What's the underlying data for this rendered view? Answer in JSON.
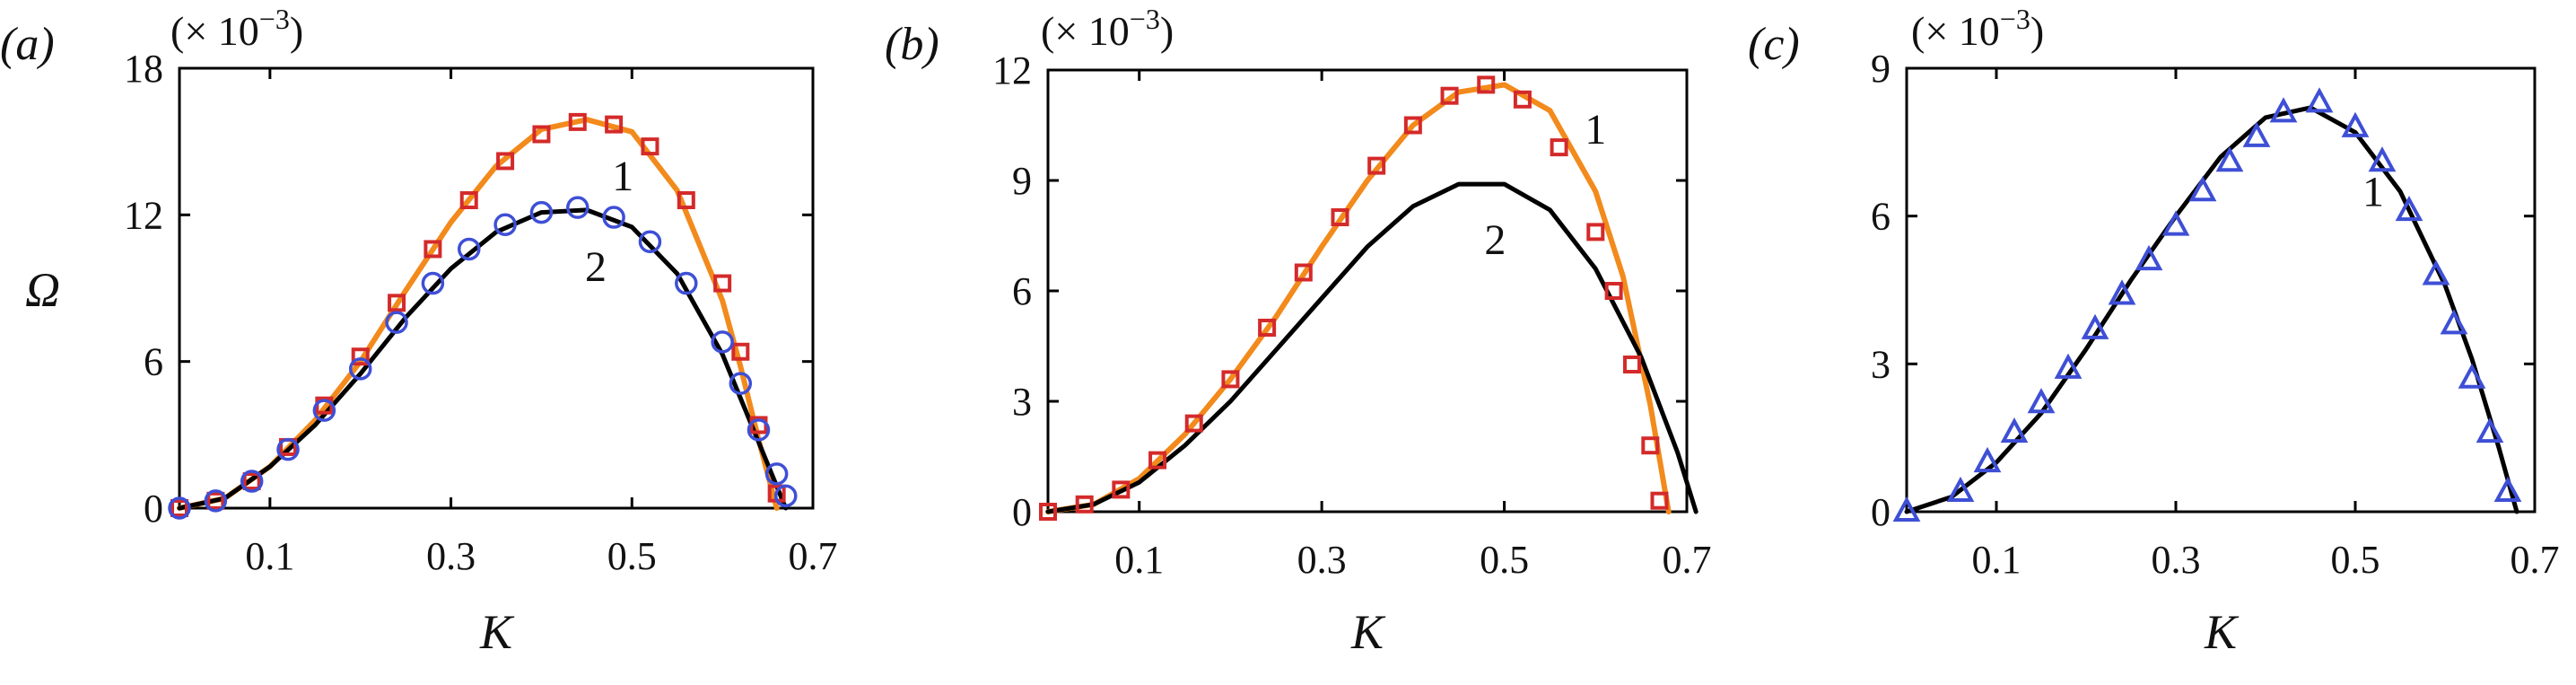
{
  "chart_data": [
    {
      "type": "line",
      "panel_label": "(a)",
      "exponent_label": "(× 10",
      "exponent_sup": "−3",
      "exponent_close": ")",
      "xlabel": "K",
      "ylabel": "Ω",
      "xlim": [
        0,
        0.7
      ],
      "ylim": [
        0,
        18
      ],
      "x_ticks": [
        "0.1",
        "0.3",
        "0.5",
        "0.7"
      ],
      "x_tick_values": [
        0.1,
        0.3,
        0.5,
        0.7
      ],
      "y_ticks": [
        "0",
        "6",
        "12",
        "18"
      ],
      "y_tick_values": [
        0,
        6,
        12,
        18
      ],
      "series": [
        {
          "name": "1",
          "style": "line",
          "color": "#f28a1c",
          "x": [
            0,
            0.05,
            0.1,
            0.15,
            0.2,
            0.25,
            0.3,
            0.35,
            0.4,
            0.45,
            0.5,
            0.55,
            0.6,
            0.62,
            0.64,
            0.66
          ],
          "values": [
            0,
            0.4,
            1.7,
            3.6,
            6.0,
            8.9,
            11.7,
            14.0,
            15.5,
            15.9,
            15.4,
            13.0,
            8.5,
            5.8,
            2.8,
            0
          ]
        },
        {
          "name": "",
          "style": "line",
          "color": "#000000",
          "x": [
            0,
            0.05,
            0.1,
            0.15,
            0.2,
            0.25,
            0.3,
            0.35,
            0.4,
            0.45,
            0.5,
            0.55,
            0.6,
            0.62,
            0.65,
            0.67
          ],
          "values": [
            0,
            0.4,
            1.7,
            3.4,
            5.5,
            7.8,
            9.8,
            11.3,
            12.1,
            12.2,
            11.5,
            9.6,
            6.3,
            4.5,
            1.8,
            0
          ]
        },
        {
          "name": "",
          "style": "marker",
          "marker": "square",
          "color": "#d42a2a",
          "x": [
            0.0,
            0.04,
            0.08,
            0.12,
            0.16,
            0.2,
            0.24,
            0.28,
            0.32,
            0.36,
            0.4,
            0.44,
            0.48,
            0.52,
            0.56,
            0.6,
            0.62,
            0.64,
            0.66
          ],
          "values": [
            0,
            0.3,
            1.1,
            2.5,
            4.2,
            6.2,
            8.4,
            10.6,
            12.6,
            14.2,
            15.3,
            15.8,
            15.7,
            14.8,
            12.6,
            9.2,
            6.4,
            3.4,
            0.6
          ]
        },
        {
          "name": "",
          "style": "marker",
          "marker": "circle",
          "color": "#3e4fd6",
          "x": [
            0.0,
            0.04,
            0.08,
            0.12,
            0.16,
            0.2,
            0.24,
            0.28,
            0.32,
            0.36,
            0.4,
            0.44,
            0.48,
            0.52,
            0.56,
            0.6,
            0.62,
            0.64,
            0.66,
            0.67
          ],
          "values": [
            0,
            0.3,
            1.1,
            2.4,
            4.0,
            5.7,
            7.6,
            9.2,
            10.6,
            11.6,
            12.1,
            12.3,
            11.9,
            10.9,
            9.2,
            6.8,
            5.1,
            3.2,
            1.4,
            0.5
          ]
        }
      ],
      "annotations": [
        {
          "text": "1",
          "x": 0.49,
          "y": 13.0
        },
        {
          "text": "2",
          "x": 0.46,
          "y": 9.3
        }
      ]
    },
    {
      "type": "line",
      "panel_label": "(b)",
      "exponent_label": "(× 10",
      "exponent_sup": "−3",
      "exponent_close": ")",
      "xlabel": "K",
      "ylabel": "",
      "xlim": [
        0,
        0.7
      ],
      "ylim": [
        0,
        12
      ],
      "x_ticks": [
        "0.1",
        "0.3",
        "0.5",
        "0.7"
      ],
      "x_tick_values": [
        0.1,
        0.3,
        0.5,
        0.7
      ],
      "y_ticks": [
        "0",
        "3",
        "6",
        "9",
        "12"
      ],
      "y_tick_values": [
        0,
        3,
        6,
        9,
        12
      ],
      "series": [
        {
          "name": "1",
          "style": "line",
          "color": "#f28a1c",
          "x": [
            0,
            0.05,
            0.1,
            0.15,
            0.2,
            0.25,
            0.3,
            0.35,
            0.4,
            0.45,
            0.5,
            0.55,
            0.6,
            0.63,
            0.66,
            0.68
          ],
          "values": [
            0,
            0.2,
            0.9,
            2.1,
            3.6,
            5.3,
            7.2,
            9.0,
            10.5,
            11.4,
            11.6,
            10.9,
            8.7,
            6.4,
            2.9,
            0
          ]
        },
        {
          "name": "2",
          "style": "line",
          "color": "#000000",
          "x": [
            0,
            0.05,
            0.1,
            0.15,
            0.2,
            0.25,
            0.3,
            0.35,
            0.4,
            0.45,
            0.5,
            0.55,
            0.6,
            0.65,
            0.69,
            0.71
          ],
          "values": [
            0,
            0.2,
            0.8,
            1.8,
            3.0,
            4.4,
            5.8,
            7.2,
            8.3,
            8.9,
            8.9,
            8.2,
            6.6,
            4.2,
            1.6,
            0
          ]
        },
        {
          "name": "",
          "style": "marker",
          "marker": "square",
          "color": "#d42a2a",
          "x": [
            0.0,
            0.04,
            0.08,
            0.12,
            0.16,
            0.2,
            0.24,
            0.28,
            0.32,
            0.36,
            0.4,
            0.44,
            0.48,
            0.52,
            0.56,
            0.6,
            0.62,
            0.64,
            0.66,
            0.67
          ],
          "values": [
            0,
            0.2,
            0.6,
            1.4,
            2.4,
            3.6,
            5.0,
            6.5,
            8.0,
            9.4,
            10.5,
            11.3,
            11.6,
            11.2,
            9.9,
            7.6,
            6.0,
            4.0,
            1.8,
            0.3
          ]
        }
      ],
      "annotations": [
        {
          "text": "1",
          "x": 0.6,
          "y": 10.0
        },
        {
          "text": "2",
          "x": 0.49,
          "y": 7.0
        }
      ]
    },
    {
      "type": "line",
      "panel_label": "(c)",
      "exponent_label": "(× 10",
      "exponent_sup": "−3",
      "exponent_close": ")",
      "xlabel": "K",
      "ylabel": "",
      "xlim": [
        0,
        0.7
      ],
      "ylim": [
        0,
        9
      ],
      "x_ticks": [
        "0.1",
        "0.3",
        "0.5",
        "0.7"
      ],
      "x_tick_values": [
        0.1,
        0.3,
        0.5,
        0.7
      ],
      "y_ticks": [
        "0",
        "3",
        "6",
        "9"
      ],
      "y_tick_values": [
        0,
        3,
        6,
        9
      ],
      "series": [
        {
          "name": "1",
          "style": "line",
          "color": "#000000",
          "x": [
            0,
            0.05,
            0.1,
            0.15,
            0.2,
            0.25,
            0.3,
            0.35,
            0.4,
            0.45,
            0.5,
            0.55,
            0.6,
            0.63,
            0.66,
            0.68
          ],
          "values": [
            0,
            0.3,
            1.0,
            2.0,
            3.3,
            4.7,
            6.0,
            7.2,
            8.0,
            8.2,
            7.7,
            6.5,
            4.6,
            3.1,
            1.3,
            0
          ]
        },
        {
          "name": "",
          "style": "marker",
          "marker": "triangle",
          "color": "#3e4fd6",
          "x": [
            0.0,
            0.06,
            0.09,
            0.12,
            0.15,
            0.18,
            0.21,
            0.24,
            0.27,
            0.3,
            0.33,
            0.36,
            0.39,
            0.42,
            0.46,
            0.5,
            0.53,
            0.56,
            0.59,
            0.61,
            0.63,
            0.65,
            0.67
          ],
          "values": [
            0,
            0.4,
            1.0,
            1.6,
            2.2,
            2.9,
            3.7,
            4.4,
            5.1,
            5.8,
            6.5,
            7.1,
            7.6,
            8.1,
            8.3,
            7.8,
            7.1,
            6.1,
            4.8,
            3.8,
            2.7,
            1.6,
            0.4
          ]
        }
      ],
      "annotations": [
        {
          "text": "1",
          "x": 0.52,
          "y": 6.2
        }
      ]
    }
  ]
}
